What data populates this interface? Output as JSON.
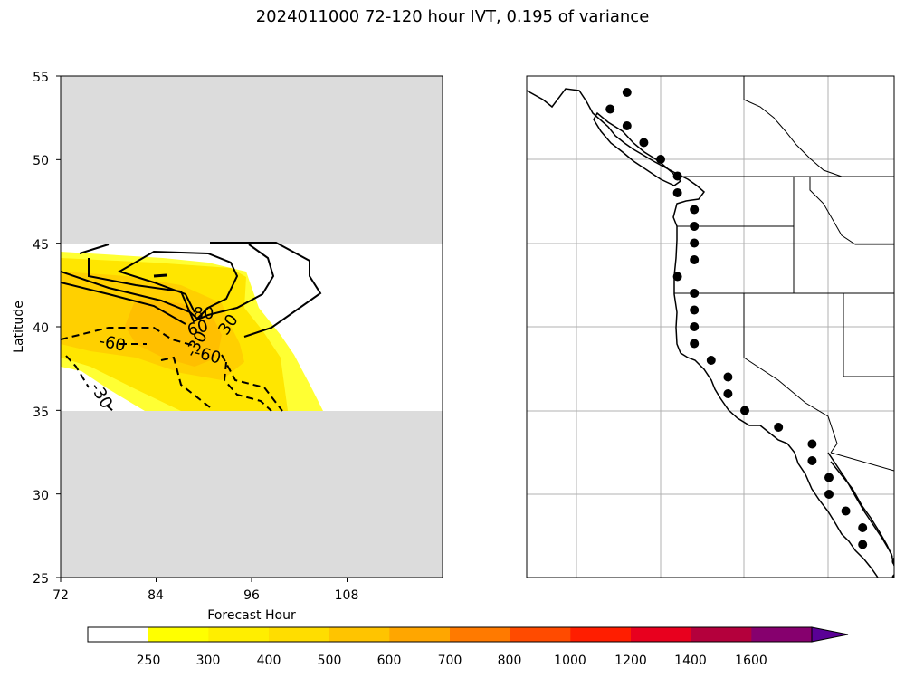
{
  "title": "2024011000 72-120 hour IVT, 0.195 of variance",
  "chart_data": [
    {
      "type": "heatmap",
      "panel": "left",
      "xlabel": "Forecast Hour",
      "ylabel": "Latitude",
      "xlim": [
        72,
        120
      ],
      "ylim": [
        25,
        55
      ],
      "x_ticks": [
        "72",
        "84",
        "96",
        "108"
      ],
      "y_ticks": [
        "25",
        "30",
        "35",
        "40",
        "45",
        "50",
        "55"
      ],
      "masked_latitude_ranges": [
        [
          25,
          35
        ],
        [
          45,
          55
        ]
      ],
      "filled_levels": [
        250,
        300,
        400,
        500
      ],
      "contours": [
        {
          "name": "positive",
          "style": "solid",
          "labels": [
            "80",
            "30",
            "60"
          ]
        },
        {
          "name": "negative",
          "style": "dashed",
          "labels": [
            "-60",
            "-30",
            "-60",
            "-30"
          ]
        }
      ]
    },
    {
      "type": "map",
      "panel": "right",
      "description_points": "coastal landfall points",
      "points": [
        {
          "lon": -127.0,
          "lat": 54.0
        },
        {
          "lon": -128.0,
          "lat": 53.0
        },
        {
          "lon": -127.0,
          "lat": 52.0
        },
        {
          "lon": -126.0,
          "lat": 51.0
        },
        {
          "lon": -125.0,
          "lat": 50.0
        },
        {
          "lon": -124.0,
          "lat": 49.0
        },
        {
          "lon": -124.0,
          "lat": 48.0
        },
        {
          "lon": -123.0,
          "lat": 47.0
        },
        {
          "lon": -123.0,
          "lat": 46.0
        },
        {
          "lon": -123.0,
          "lat": 45.0
        },
        {
          "lon": -123.0,
          "lat": 44.0
        },
        {
          "lon": -124.0,
          "lat": 43.0
        },
        {
          "lon": -123.0,
          "lat": 42.0
        },
        {
          "lon": -123.0,
          "lat": 41.0
        },
        {
          "lon": -123.0,
          "lat": 40.0
        },
        {
          "lon": -123.0,
          "lat": 39.0
        },
        {
          "lon": -122.0,
          "lat": 38.0
        },
        {
          "lon": -121.0,
          "lat": 37.0
        },
        {
          "lon": -121.0,
          "lat": 36.0
        },
        {
          "lon": -120.0,
          "lat": 35.0
        },
        {
          "lon": -118.0,
          "lat": 34.0
        },
        {
          "lon": -116.0,
          "lat": 33.0
        },
        {
          "lon": -116.0,
          "lat": 32.0
        },
        {
          "lon": -115.0,
          "lat": 31.0
        },
        {
          "lon": -115.0,
          "lat": 30.0
        },
        {
          "lon": -114.0,
          "lat": 29.0
        },
        {
          "lon": -113.0,
          "lat": 28.0
        },
        {
          "lon": -113.0,
          "lat": 27.0
        },
        {
          "lon": -111.0,
          "lat": 26.0
        },
        {
          "lon": -111.0,
          "lat": 25.0
        }
      ]
    }
  ],
  "colorbar": {
    "levels": [
      "250",
      "300",
      "400",
      "500",
      "600",
      "700",
      "800",
      "1000",
      "1200",
      "1400",
      "1600"
    ],
    "colors": [
      "#ffffff",
      "#ffff00",
      "#ffee00",
      "#ffdd00",
      "#ffc400",
      "#ffa600",
      "#ff7a00",
      "#ff4b00",
      "#ff1e00",
      "#e8001e",
      "#b4003c",
      "#86006e",
      "#5a0096"
    ]
  }
}
